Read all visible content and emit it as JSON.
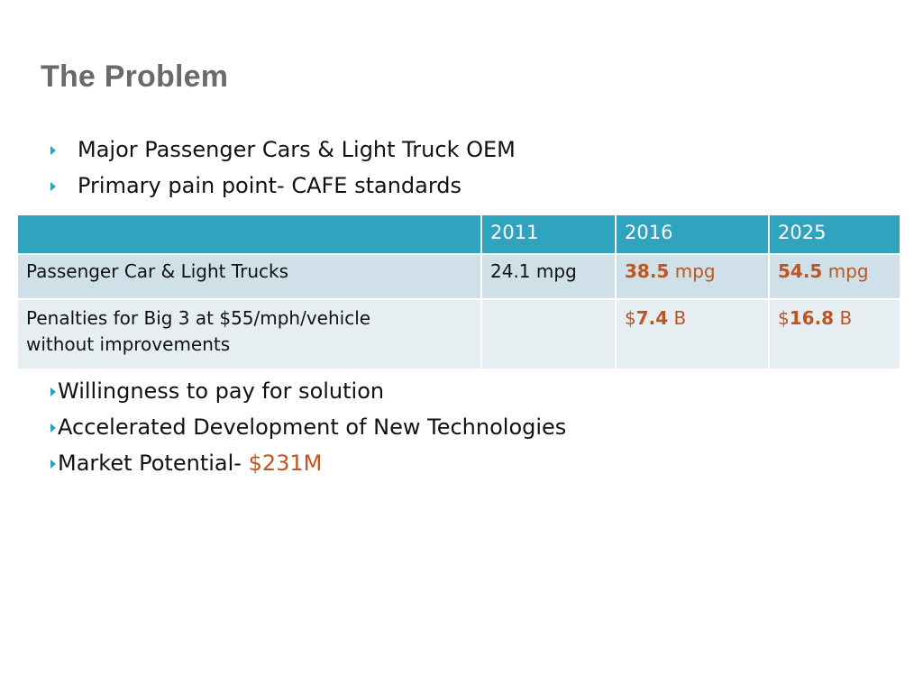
{
  "slide": {
    "title": "The Problem",
    "bullets_top": [
      "Major Passenger Cars & Light Truck OEM",
      "Primary pain point- CAFE standards"
    ],
    "table": {
      "headers": [
        "",
        "2011",
        "2016",
        "2025"
      ],
      "rows": [
        {
          "label": "Passenger Car & Light Trucks",
          "c2011": "24.1 mpg",
          "c2016_num": "38.5",
          "c2016_unit": " mpg",
          "c2025_num": "54.5",
          "c2025_unit": " mpg"
        },
        {
          "label_line1": "Penalties for Big 3 at $55/mph/vehicle",
          "label_line2": "without improvements",
          "c2011": "",
          "c2016_cur": "$",
          "c2016_num": "7.4",
          "c2016_unit": " B",
          "c2025_cur": "$",
          "c2025_num": "16.8",
          "c2025_unit": " B"
        }
      ]
    },
    "bullets_bottom": [
      "Willingness to pay for solution",
      "Accelerated Development of New Technologies"
    ],
    "market": {
      "label": "Market Potential- ",
      "value": "$231M"
    },
    "colors": {
      "accent": "#2aa3be",
      "header_fill": "#30a3bf",
      "row1_fill": "#cfe0e8",
      "row2_fill": "#e6eef2",
      "highlight": "#c0561f",
      "title": "#6a6a6a"
    }
  }
}
